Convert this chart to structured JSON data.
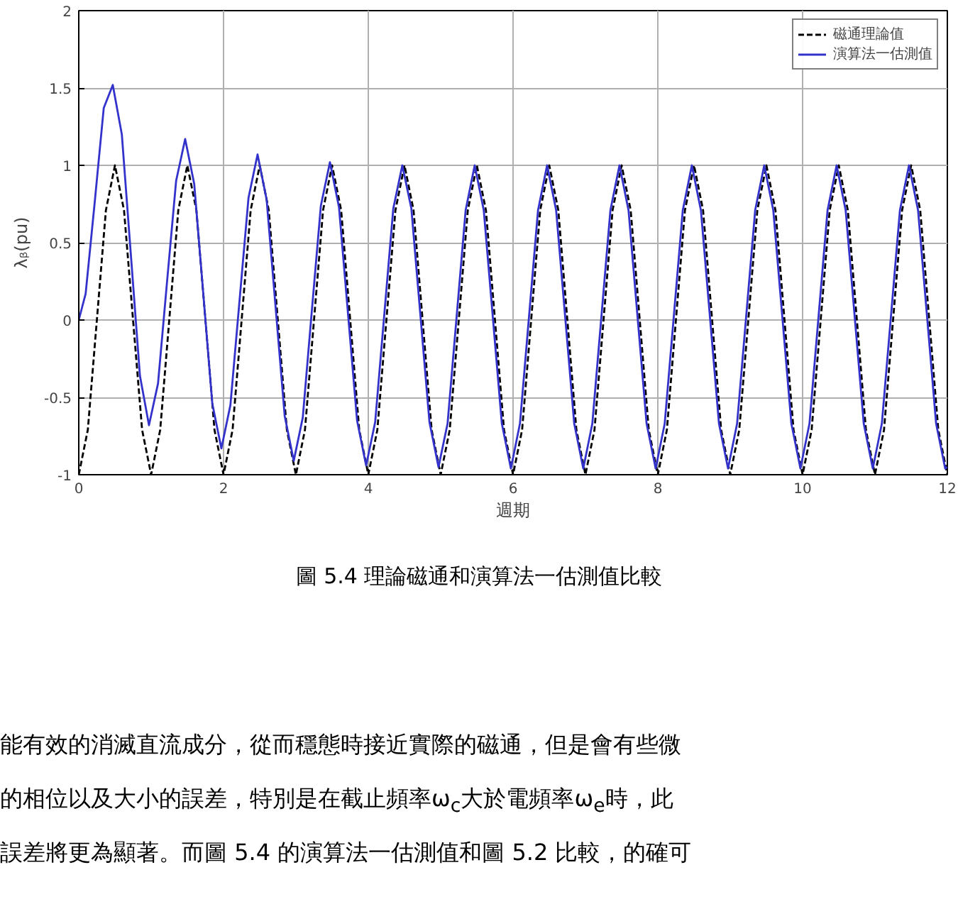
{
  "chart_data": {
    "type": "line",
    "xlabel": "週期",
    "ylabel": "λᵦ(pu)",
    "xlim": [
      0,
      12
    ],
    "ylim": [
      -1,
      2
    ],
    "xticks": [
      0,
      2,
      4,
      6,
      8,
      10,
      12
    ],
    "yticks": [
      -1,
      -0.5,
      0,
      0.5,
      1,
      1.5,
      2
    ],
    "grid": true,
    "legend": "top right",
    "series": [
      {
        "name": "磁通理論值",
        "color": "#000000",
        "line_style": "dashed",
        "x": [
          0,
          0.125,
          0.25,
          0.375,
          0.5,
          0.625,
          0.75,
          0.875,
          1,
          1.125,
          1.25,
          1.375,
          1.5,
          1.625,
          1.75,
          1.875,
          2,
          2.125,
          2.25,
          2.375,
          2.5,
          2.625,
          2.75,
          2.875,
          3,
          3.125,
          3.25,
          3.375,
          3.5,
          3.625,
          3.75,
          3.875,
          4,
          4.125,
          4.25,
          4.375,
          4.5,
          4.625,
          4.75,
          4.875,
          5,
          5.125,
          5.25,
          5.375,
          5.5,
          5.625,
          5.75,
          5.875,
          6,
          6.125,
          6.25,
          6.375,
          6.5,
          6.625,
          6.75,
          6.875,
          7,
          7.125,
          7.25,
          7.375,
          7.5,
          7.625,
          7.75,
          7.875,
          8,
          8.125,
          8.25,
          8.375,
          8.5,
          8.625,
          8.75,
          8.875,
          9,
          9.125,
          9.25,
          9.375,
          9.5,
          9.625,
          9.75,
          9.875,
          10,
          10.125,
          10.25,
          10.375,
          10.5,
          10.625,
          10.75,
          10.875,
          11,
          11.125,
          11.25,
          11.375,
          11.5,
          11.625,
          11.75,
          11.875,
          12
        ],
        "values": [
          -1,
          -0.71,
          0,
          0.71,
          1,
          0.71,
          0,
          -0.71,
          -1,
          -0.71,
          0,
          0.71,
          1,
          0.71,
          0,
          -0.71,
          -1,
          -0.71,
          0,
          0.71,
          1,
          0.71,
          0,
          -0.71,
          -1,
          -0.71,
          0,
          0.71,
          1,
          0.71,
          0,
          -0.71,
          -1,
          -0.71,
          0,
          0.71,
          1,
          0.71,
          0,
          -0.71,
          -1,
          -0.71,
          0,
          0.71,
          1,
          0.71,
          0,
          -0.71,
          -1,
          -0.71,
          0,
          0.71,
          1,
          0.71,
          0,
          -0.71,
          -1,
          -0.71,
          0,
          0.71,
          1,
          0.71,
          0,
          -0.71,
          -1,
          -0.71,
          0,
          0.71,
          1,
          0.71,
          0,
          -0.71,
          -1,
          -0.71,
          0,
          0.71,
          1,
          0.71,
          0,
          -0.71,
          -1,
          -0.71,
          0,
          0.71,
          1,
          0.71,
          0,
          -0.71,
          -1,
          -0.71,
          0,
          0.71,
          1,
          0.71,
          0,
          -0.71,
          -1
        ]
      },
      {
        "name": "演算法一估測值",
        "color": "#3333cc",
        "line_style": "solid",
        "x": [
          0,
          0.095,
          0.22,
          0.345,
          0.47,
          0.595,
          0.72,
          0.845,
          0.97,
          1.095,
          1.22,
          1.345,
          1.47,
          1.595,
          1.72,
          1.845,
          1.97,
          2.095,
          2.22,
          2.345,
          2.47,
          2.595,
          2.72,
          2.845,
          2.97,
          3.095,
          3.22,
          3.345,
          3.47,
          3.595,
          3.72,
          3.845,
          3.97,
          4.095,
          4.22,
          4.345,
          4.47,
          4.595,
          4.72,
          4.845,
          4.97,
          5.095,
          5.22,
          5.345,
          5.47,
          5.595,
          5.72,
          5.845,
          5.97,
          6.095,
          6.22,
          6.345,
          6.47,
          6.595,
          6.72,
          6.845,
          6.97,
          7.095,
          7.22,
          7.345,
          7.47,
          7.595,
          7.72,
          7.845,
          7.97,
          8.095,
          8.22,
          8.345,
          8.47,
          8.595,
          8.72,
          8.845,
          8.97,
          9.095,
          9.22,
          9.345,
          9.47,
          9.595,
          9.72,
          9.845,
          9.97,
          10.095,
          10.22,
          10.345,
          10.47,
          10.595,
          10.72,
          10.845,
          10.97,
          11.095,
          11.22,
          11.345,
          11.47,
          11.595,
          11.72,
          11.845,
          11.97,
          12
        ],
        "values": [
          0,
          0.17,
          0.76,
          1.37,
          1.52,
          1.2,
          0.42,
          -0.36,
          -0.68,
          -0.41,
          0.25,
          0.9,
          1.17,
          0.88,
          0.17,
          -0.54,
          -0.83,
          -0.55,
          0.12,
          0.79,
          1.07,
          0.78,
          0.08,
          -0.62,
          -0.91,
          -0.63,
          0.06,
          0.74,
          1.02,
          0.73,
          0.04,
          -0.65,
          -0.94,
          -0.66,
          0.03,
          0.72,
          1,
          0.72,
          0.03,
          -0.66,
          -0.95,
          -0.67,
          0.02,
          0.71,
          1,
          0.71,
          0.02,
          -0.67,
          -0.96,
          -0.67,
          0.02,
          0.71,
          1,
          0.71,
          0.02,
          -0.67,
          -0.96,
          -0.67,
          0.02,
          0.71,
          1,
          0.71,
          0.02,
          -0.67,
          -0.96,
          -0.67,
          0.02,
          0.71,
          1,
          0.71,
          0.02,
          -0.67,
          -0.96,
          -0.67,
          0.02,
          0.71,
          1,
          0.71,
          0.02,
          -0.67,
          -0.96,
          -0.67,
          0.02,
          0.71,
          1,
          0.71,
          0.02,
          -0.67,
          -0.96,
          -0.67,
          0.02,
          0.71,
          1,
          0.71,
          0.02,
          -0.67,
          -0.96,
          -0.95
        ]
      }
    ],
    "annotations": [
      "圖 5.4 理論磁通和演算法一估測值比較",
      "能有效的消滅直流成分，從而穩態時接近實際的磁通，但是會有些微",
      "的相位以及大小的誤差，特別是在截止頻率ω$_{c}$大於電頻率ω$_{e}$時，此",
      "誤差將更為顯著。而圖 5.4 的演算法一估測值和圖 5.2 比較，的確可"
    ]
  }
}
